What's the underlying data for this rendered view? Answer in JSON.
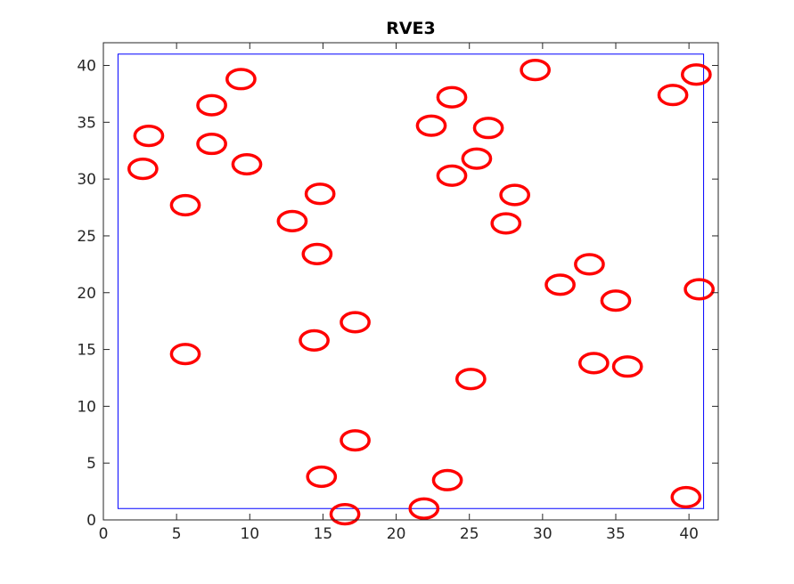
{
  "chart_data": {
    "type": "scatter",
    "title": "RVE3",
    "xlabel": "",
    "ylabel": "",
    "xlim": [
      0,
      42
    ],
    "ylim": [
      0,
      42
    ],
    "xticks": [
      0,
      5,
      10,
      15,
      20,
      25,
      30,
      35,
      40
    ],
    "yticks": [
      0,
      5,
      10,
      15,
      20,
      25,
      30,
      35,
      40
    ],
    "xtick_labels": [
      "0",
      "5",
      "10",
      "15",
      "20",
      "25",
      "30",
      "35",
      "40"
    ],
    "ytick_labels": [
      "0",
      "5",
      "10",
      "15",
      "20",
      "25",
      "30",
      "35",
      "40"
    ],
    "grid": false,
    "legend": "none",
    "boundary": {
      "x": [
        1,
        41
      ],
      "y": [
        1,
        41
      ],
      "color": "#0000ff"
    },
    "inclusion": {
      "shape": "ellipse",
      "rx": 0.95,
      "ry": 0.85,
      "color": "#ff0000"
    },
    "points": [
      {
        "x": 9.4,
        "y": 38.8
      },
      {
        "x": 7.4,
        "y": 36.5
      },
      {
        "x": 3.1,
        "y": 33.8
      },
      {
        "x": 7.4,
        "y": 33.1
      },
      {
        "x": 2.7,
        "y": 30.9
      },
      {
        "x": 9.8,
        "y": 31.3
      },
      {
        "x": 5.6,
        "y": 27.7
      },
      {
        "x": 14.8,
        "y": 28.7
      },
      {
        "x": 12.9,
        "y": 26.3
      },
      {
        "x": 14.6,
        "y": 23.4
      },
      {
        "x": 5.6,
        "y": 14.6
      },
      {
        "x": 14.4,
        "y": 15.8
      },
      {
        "x": 17.2,
        "y": 17.4
      },
      {
        "x": 17.2,
        "y": 7.0
      },
      {
        "x": 14.9,
        "y": 3.8
      },
      {
        "x": 16.5,
        "y": 0.5
      },
      {
        "x": 21.9,
        "y": 1.0
      },
      {
        "x": 23.5,
        "y": 3.5
      },
      {
        "x": 25.1,
        "y": 12.4
      },
      {
        "x": 23.8,
        "y": 37.2
      },
      {
        "x": 22.4,
        "y": 34.7
      },
      {
        "x": 26.3,
        "y": 34.5
      },
      {
        "x": 25.5,
        "y": 31.8
      },
      {
        "x": 23.8,
        "y": 30.3
      },
      {
        "x": 28.1,
        "y": 28.6
      },
      {
        "x": 27.5,
        "y": 26.1
      },
      {
        "x": 29.5,
        "y": 39.6
      },
      {
        "x": 31.2,
        "y": 20.7
      },
      {
        "x": 33.2,
        "y": 22.5
      },
      {
        "x": 35.0,
        "y": 19.3
      },
      {
        "x": 33.5,
        "y": 13.8
      },
      {
        "x": 35.8,
        "y": 13.5
      },
      {
        "x": 38.9,
        "y": 37.4
      },
      {
        "x": 40.5,
        "y": 39.2
      },
      {
        "x": 40.7,
        "y": 20.3
      },
      {
        "x": 39.8,
        "y": 2.0
      }
    ]
  }
}
